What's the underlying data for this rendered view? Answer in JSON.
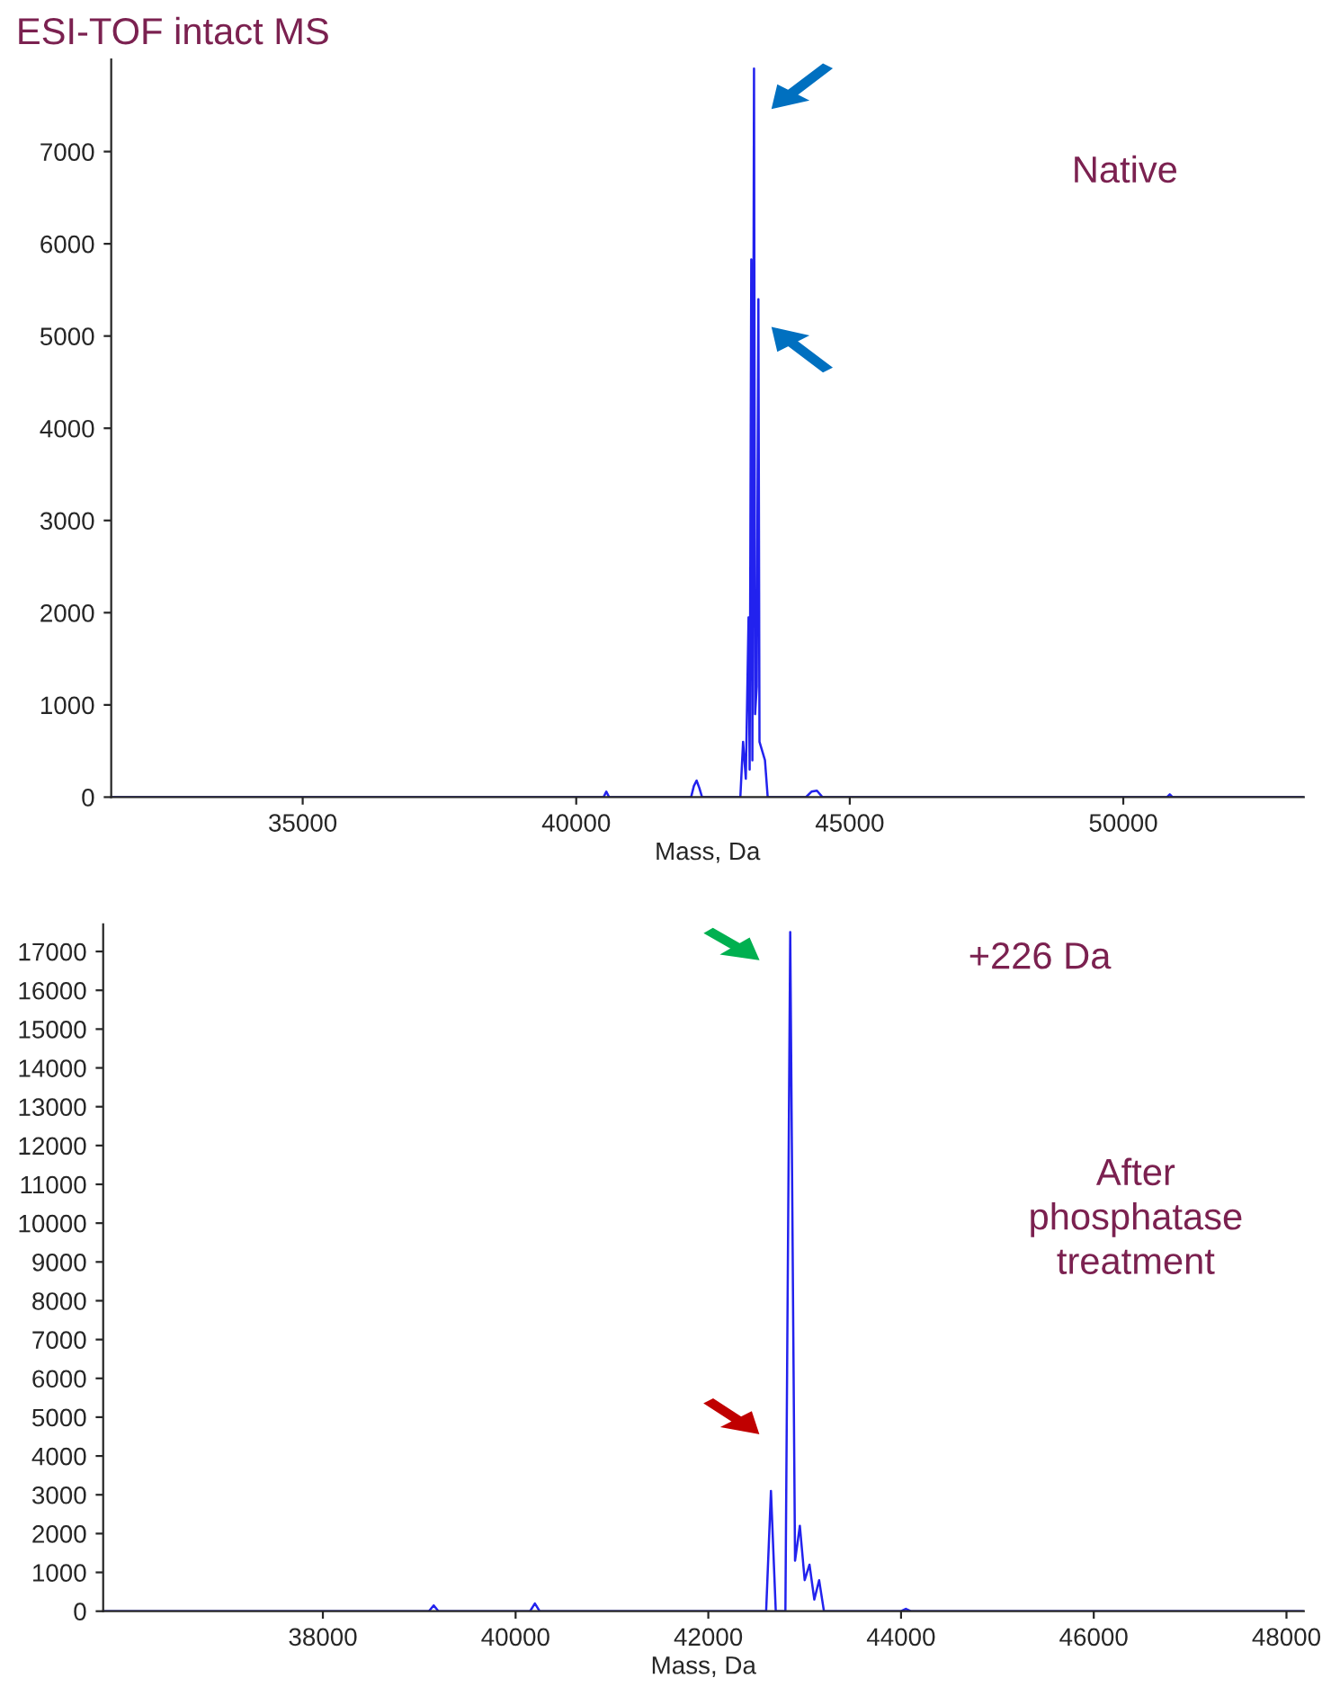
{
  "chart_data": [
    {
      "type": "line",
      "title": "ESI-TOF intact MS",
      "xlabel": "Mass, Da",
      "annotations": [
        "Native"
      ],
      "x": [
        31500,
        40500,
        40550,
        40600,
        42100,
        42150,
        42200,
        42250,
        42300,
        43000,
        43050,
        43100,
        43150,
        43170,
        43200,
        43220,
        43250,
        43270,
        43300,
        43330,
        43350,
        43400,
        43450,
        43500,
        44200,
        44300,
        44400,
        44500,
        50800,
        50850,
        50900,
        53300
      ],
      "series": [
        {
          "color": "#2222ee",
          "values": [
            0,
            0,
            60,
            0,
            0,
            120,
            180,
            100,
            0,
            0,
            600,
            200,
            1950,
            300,
            5830,
            400,
            7900,
            900,
            1200,
            5400,
            600,
            500,
            400,
            0,
            0,
            60,
            70,
            0,
            0,
            30,
            0,
            0
          ]
        }
      ],
      "xlim": [
        31500,
        53300
      ],
      "ylim": [
        0,
        8000
      ],
      "xticks": [
        35000,
        40000,
        45000,
        50000
      ],
      "yticks": [
        0,
        1000,
        2000,
        3000,
        4000,
        5000,
        6000,
        7000
      ],
      "grid": false,
      "legend": false
    },
    {
      "type": "line",
      "xlabel": "Mass, Da",
      "annotations": [
        "+226 Da",
        "After\nphosphatase\ntreatment"
      ],
      "x": [
        35720,
        39100,
        39150,
        39200,
        40150,
        40200,
        40250,
        42600,
        42650,
        42700,
        42800,
        42850,
        42900,
        42950,
        43000,
        43050,
        43100,
        43150,
        43200,
        44000,
        44050,
        44100,
        48180
      ],
      "series": [
        {
          "color": "#2222ee",
          "values": [
            0,
            0,
            150,
            0,
            0,
            200,
            0,
            0,
            3100,
            0,
            0,
            17500,
            1300,
            2200,
            800,
            1200,
            300,
            800,
            0,
            0,
            60,
            0,
            0
          ]
        }
      ],
      "xlim": [
        35720,
        48180
      ],
      "ylim": [
        0,
        17700
      ],
      "xticks": [
        38000,
        40000,
        42000,
        44000,
        46000,
        48000
      ],
      "yticks": [
        0,
        1000,
        2000,
        3000,
        4000,
        5000,
        6000,
        7000,
        8000,
        9000,
        10000,
        11000,
        12000,
        13000,
        14000,
        15000,
        16000,
        17000
      ],
      "grid": false,
      "legend": false
    }
  ]
}
